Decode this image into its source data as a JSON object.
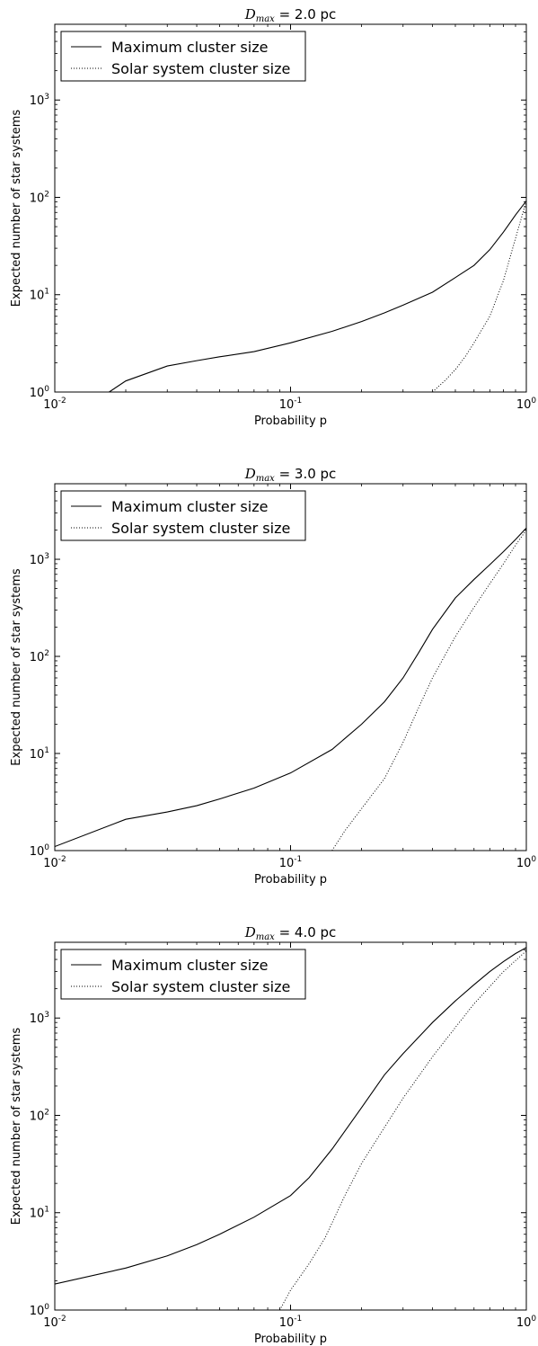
{
  "chart_data": [
    {
      "type": "line",
      "title": "D_max = 2.0 pc",
      "title_parts": {
        "symbol": "D",
        "subscript": "max",
        "rest": " = 2.0 pc"
      },
      "xlabel": "Probability p",
      "ylabel": "Expected number of star systems",
      "xscale": "log",
      "yscale": "log",
      "xlim": [
        0.01,
        1
      ],
      "ylim": [
        1,
        6000
      ],
      "xticks": [
        {
          "value": 0.01,
          "base": "10",
          "exp": "-2"
        },
        {
          "value": 0.1,
          "base": "10",
          "exp": "-1"
        },
        {
          "value": 1,
          "base": "10",
          "exp": "0"
        }
      ],
      "yticks": [
        {
          "value": 1,
          "base": "10",
          "exp": "0"
        },
        {
          "value": 10,
          "base": "10",
          "exp": "1"
        },
        {
          "value": 100,
          "base": "10",
          "exp": "2"
        },
        {
          "value": 1000,
          "base": "10",
          "exp": "3"
        }
      ],
      "legend_position": "top-left",
      "grid": false,
      "series": [
        {
          "name": "Maximum cluster size",
          "style": "solid",
          "points": [
            [
              0.01,
              1
            ],
            [
              0.017,
              1
            ],
            [
              0.02,
              1.3
            ],
            [
              0.03,
              1.85
            ],
            [
              0.04,
              2.1
            ],
            [
              0.05,
              2.3
            ],
            [
              0.07,
              2.6
            ],
            [
              0.1,
              3.2
            ],
            [
              0.15,
              4.2
            ],
            [
              0.2,
              5.3
            ],
            [
              0.25,
              6.5
            ],
            [
              0.3,
              7.8
            ],
            [
              0.4,
              10.6
            ],
            [
              0.5,
              15
            ],
            [
              0.6,
              20
            ],
            [
              0.7,
              29
            ],
            [
              0.8,
              44
            ],
            [
              0.9,
              66
            ],
            [
              1.0,
              92
            ]
          ]
        },
        {
          "name": "Solar system cluster size",
          "style": "dotted",
          "points": [
            [
              0.4,
              1
            ],
            [
              0.45,
              1.3
            ],
            [
              0.5,
              1.7
            ],
            [
              0.55,
              2.3
            ],
            [
              0.6,
              3.2
            ],
            [
              0.7,
              6
            ],
            [
              0.8,
              14
            ],
            [
              0.9,
              38
            ],
            [
              1.0,
              92
            ]
          ]
        }
      ]
    },
    {
      "type": "line",
      "title": "D_max = 3.0 pc",
      "title_parts": {
        "symbol": "D",
        "subscript": "max",
        "rest": " = 3.0 pc"
      },
      "xlabel": "Probability p",
      "ylabel": "Expected number of star systems",
      "xscale": "log",
      "yscale": "log",
      "xlim": [
        0.01,
        1
      ],
      "ylim": [
        1,
        6000
      ],
      "xticks": [
        {
          "value": 0.01,
          "base": "10",
          "exp": "-2"
        },
        {
          "value": 0.1,
          "base": "10",
          "exp": "-1"
        },
        {
          "value": 1,
          "base": "10",
          "exp": "0"
        }
      ],
      "yticks": [
        {
          "value": 1,
          "base": "10",
          "exp": "0"
        },
        {
          "value": 10,
          "base": "10",
          "exp": "1"
        },
        {
          "value": 100,
          "base": "10",
          "exp": "2"
        },
        {
          "value": 1000,
          "base": "10",
          "exp": "3"
        }
      ],
      "legend_position": "top-left",
      "grid": false,
      "series": [
        {
          "name": "Maximum cluster size",
          "style": "solid",
          "points": [
            [
              0.01,
              1.1
            ],
            [
              0.02,
              2.1
            ],
            [
              0.03,
              2.5
            ],
            [
              0.04,
              2.9
            ],
            [
              0.05,
              3.4
            ],
            [
              0.07,
              4.4
            ],
            [
              0.1,
              6.3
            ],
            [
              0.15,
              11
            ],
            [
              0.2,
              20
            ],
            [
              0.25,
              34
            ],
            [
              0.3,
              60
            ],
            [
              0.35,
              110
            ],
            [
              0.4,
              190
            ],
            [
              0.5,
              400
            ],
            [
              0.6,
              620
            ],
            [
              0.7,
              880
            ],
            [
              0.8,
              1200
            ],
            [
              0.9,
              1600
            ],
            [
              1.0,
              2100
            ]
          ]
        },
        {
          "name": "Solar system cluster size",
          "style": "dotted",
          "points": [
            [
              0.15,
              1
            ],
            [
              0.17,
              1.6
            ],
            [
              0.2,
              2.7
            ],
            [
              0.25,
              5.5
            ],
            [
              0.3,
              13
            ],
            [
              0.35,
              30
            ],
            [
              0.4,
              60
            ],
            [
              0.5,
              160
            ],
            [
              0.6,
              320
            ],
            [
              0.7,
              560
            ],
            [
              0.8,
              900
            ],
            [
              0.9,
              1400
            ],
            [
              1.0,
              2000
            ]
          ]
        }
      ]
    },
    {
      "type": "line",
      "title": "D_max = 4.0 pc",
      "title_parts": {
        "symbol": "D",
        "subscript": "max",
        "rest": " = 4.0 pc"
      },
      "xlabel": "Probability p",
      "ylabel": "Expected number of star systems",
      "xscale": "log",
      "yscale": "log",
      "xlim": [
        0.01,
        1
      ],
      "ylim": [
        1,
        6000
      ],
      "xticks": [
        {
          "value": 0.01,
          "base": "10",
          "exp": "-2"
        },
        {
          "value": 0.1,
          "base": "10",
          "exp": "-1"
        },
        {
          "value": 1,
          "base": "10",
          "exp": "0"
        }
      ],
      "yticks": [
        {
          "value": 1,
          "base": "10",
          "exp": "0"
        },
        {
          "value": 10,
          "base": "10",
          "exp": "1"
        },
        {
          "value": 100,
          "base": "10",
          "exp": "2"
        },
        {
          "value": 1000,
          "base": "10",
          "exp": "3"
        }
      ],
      "legend_position": "top-left",
      "grid": false,
      "series": [
        {
          "name": "Maximum cluster size",
          "style": "solid",
          "points": [
            [
              0.01,
              1.85
            ],
            [
              0.02,
              2.7
            ],
            [
              0.03,
              3.6
            ],
            [
              0.04,
              4.7
            ],
            [
              0.05,
              6
            ],
            [
              0.07,
              9
            ],
            [
              0.1,
              15
            ],
            [
              0.12,
              23
            ],
            [
              0.15,
              45
            ],
            [
              0.2,
              120
            ],
            [
              0.25,
              260
            ],
            [
              0.3,
              430
            ],
            [
              0.4,
              900
            ],
            [
              0.5,
              1500
            ],
            [
              0.6,
              2200
            ],
            [
              0.7,
              3000
            ],
            [
              0.8,
              3800
            ],
            [
              0.9,
              4600
            ],
            [
              1.0,
              5300
            ]
          ]
        },
        {
          "name": "Solar system cluster size",
          "style": "dotted",
          "points": [
            [
              0.09,
              1
            ],
            [
              0.1,
              1.6
            ],
            [
              0.12,
              3
            ],
            [
              0.14,
              5.5
            ],
            [
              0.17,
              15
            ],
            [
              0.2,
              32
            ],
            [
              0.25,
              75
            ],
            [
              0.3,
              150
            ],
            [
              0.4,
              400
            ],
            [
              0.5,
              800
            ],
            [
              0.6,
              1400
            ],
            [
              0.7,
              2100
            ],
            [
              0.8,
              3000
            ],
            [
              0.9,
              3900
            ],
            [
              1.0,
              4900
            ]
          ]
        }
      ]
    }
  ]
}
